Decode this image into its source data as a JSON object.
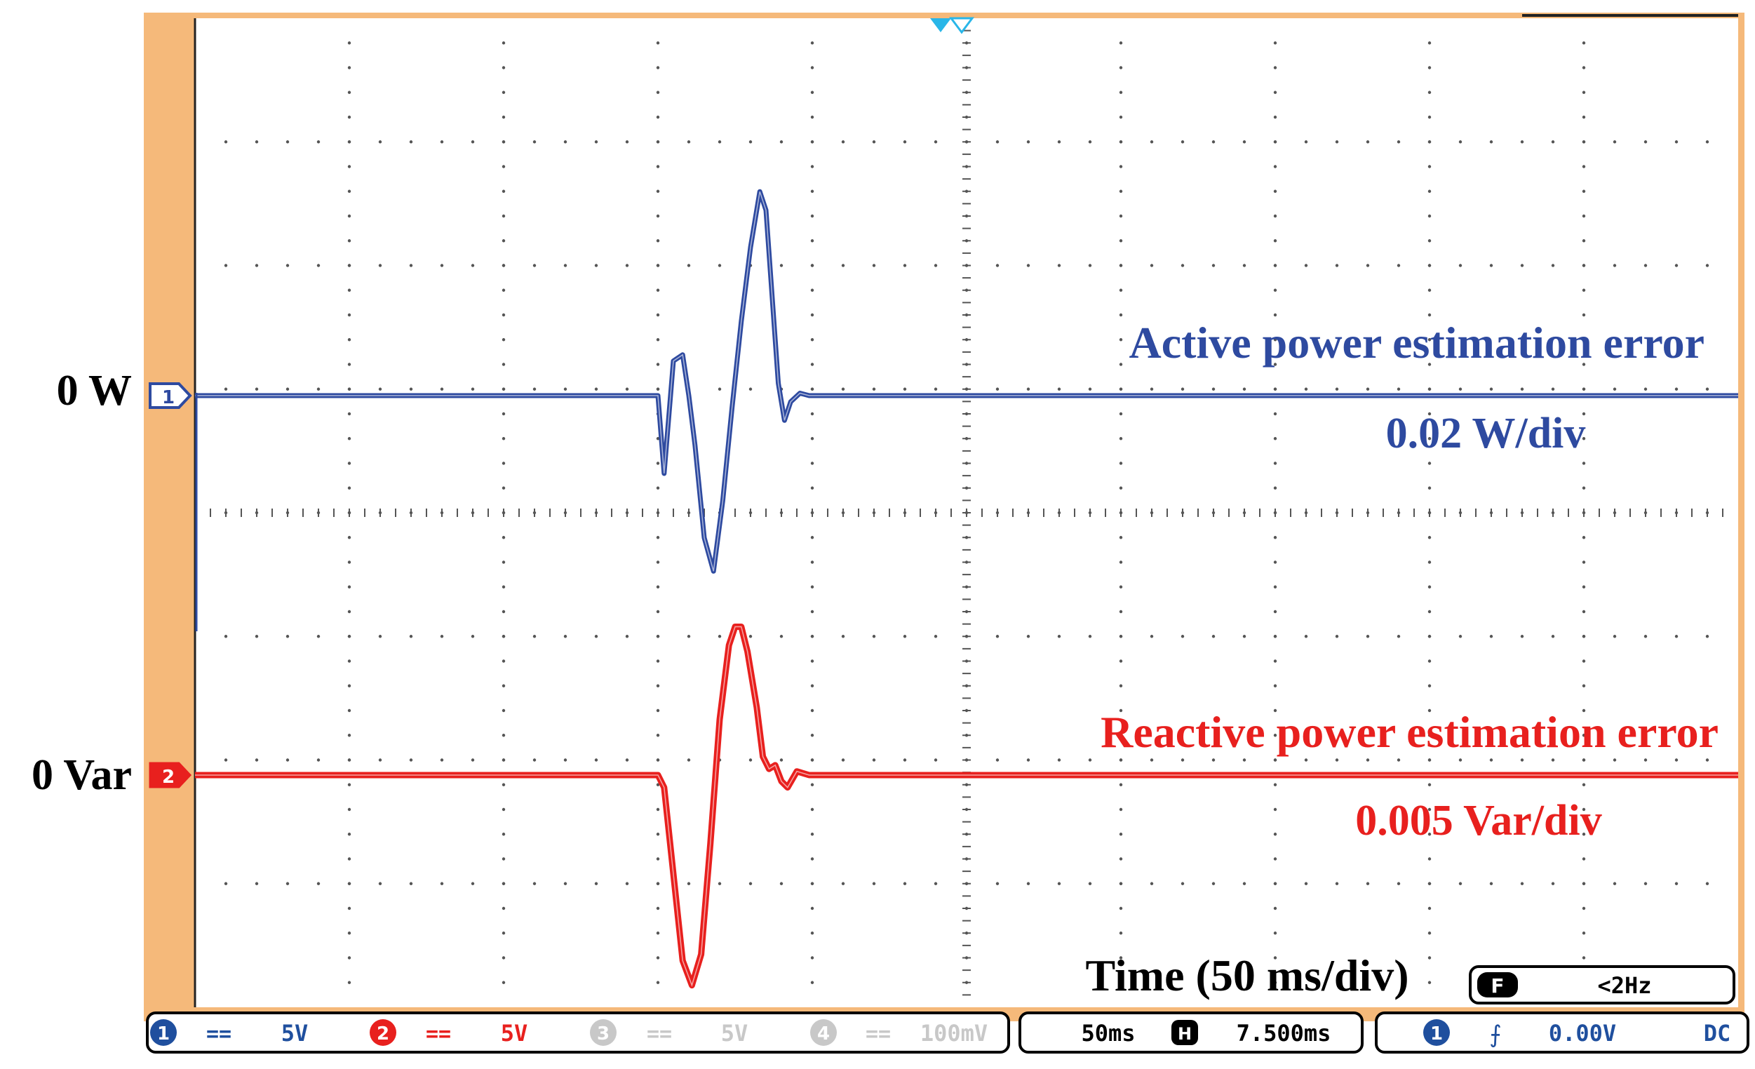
{
  "chart_data": {
    "type": "line",
    "channels": [
      {
        "id": "1",
        "marker": "1",
        "color": "#2e4aa0",
        "offset_label": "0 W",
        "name": "Active power estimation error",
        "scale_label": "0.02 W/div",
        "points": [
          [
            0,
            0
          ],
          [
            150,
            0
          ],
          [
            152,
            -0.63
          ],
          [
            155,
            0.28
          ],
          [
            158,
            0.33
          ],
          [
            160,
            0
          ],
          [
            162,
            -0.4
          ],
          [
            165,
            -1.15
          ],
          [
            168,
            -1.42
          ],
          [
            171,
            -0.85
          ],
          [
            174,
            -0.1
          ],
          [
            177,
            0.6
          ],
          [
            180,
            1.2
          ],
          [
            183,
            1.65
          ],
          [
            185,
            1.5
          ],
          [
            187,
            0.8
          ],
          [
            189,
            0.1
          ],
          [
            191,
            -0.2
          ],
          [
            193,
            -0.05
          ],
          [
            196,
            0.02
          ],
          [
            199,
            0
          ],
          [
            500,
            0
          ]
        ]
      },
      {
        "id": "2",
        "marker": "2",
        "color": "#e8201e",
        "offset_label": "0 Var",
        "name": "Reactive power estimation error",
        "scale_label": "0.005 Var/div",
        "points": [
          [
            0,
            0
          ],
          [
            150,
            0
          ],
          [
            152,
            -0.1
          ],
          [
            155,
            -0.8
          ],
          [
            158,
            -1.5
          ],
          [
            161,
            -1.7
          ],
          [
            164,
            -1.45
          ],
          [
            167,
            -0.55
          ],
          [
            170,
            0.45
          ],
          [
            173,
            1.05
          ],
          [
            175,
            1.2
          ],
          [
            177,
            1.2
          ],
          [
            179,
            1.0
          ],
          [
            182,
            0.55
          ],
          [
            184,
            0.15
          ],
          [
            186,
            0.05
          ],
          [
            188,
            0.08
          ],
          [
            190,
            -0.05
          ],
          [
            192,
            -0.1
          ],
          [
            195,
            0.03
          ],
          [
            199,
            0
          ],
          [
            500,
            0
          ]
        ]
      }
    ],
    "x_range": [
      0,
      500
    ],
    "y_range": [
      -4,
      4
    ],
    "divisions": {
      "x": 10,
      "y": 8
    },
    "grid": true,
    "xlabel": "Time (50 ms/div)",
    "trigger_marker_x": 250
  },
  "scope": {
    "trigger_mode": "F",
    "trigger_freq": "<2Hz",
    "status_bar": {
      "ch1": {
        "num": "1",
        "coupling": "==",
        "volts": "5V"
      },
      "ch2": {
        "num": "2",
        "coupling": "==",
        "volts": "5V"
      },
      "ch3": {
        "num": "3",
        "coupling": "==",
        "volts": "5V"
      },
      "ch4": {
        "num": "4",
        "coupling": "==",
        "volts": "100mV"
      },
      "timebase": "50ms",
      "hold_icon": "H",
      "delay": "7.500ms",
      "trig_ch": "1",
      "trig_slope": "⨍",
      "trig_level": "0.00V",
      "trig_coupling": "DC"
    },
    "colors": {
      "frame": "#f5b97a",
      "grid": "#555555",
      "ch1": "#2e4aa0",
      "ch2": "#e8201e",
      "faded": "#c8c8c8",
      "trigger_marker": "#29b6e8",
      "status_blue": "#1f4f9e"
    }
  }
}
